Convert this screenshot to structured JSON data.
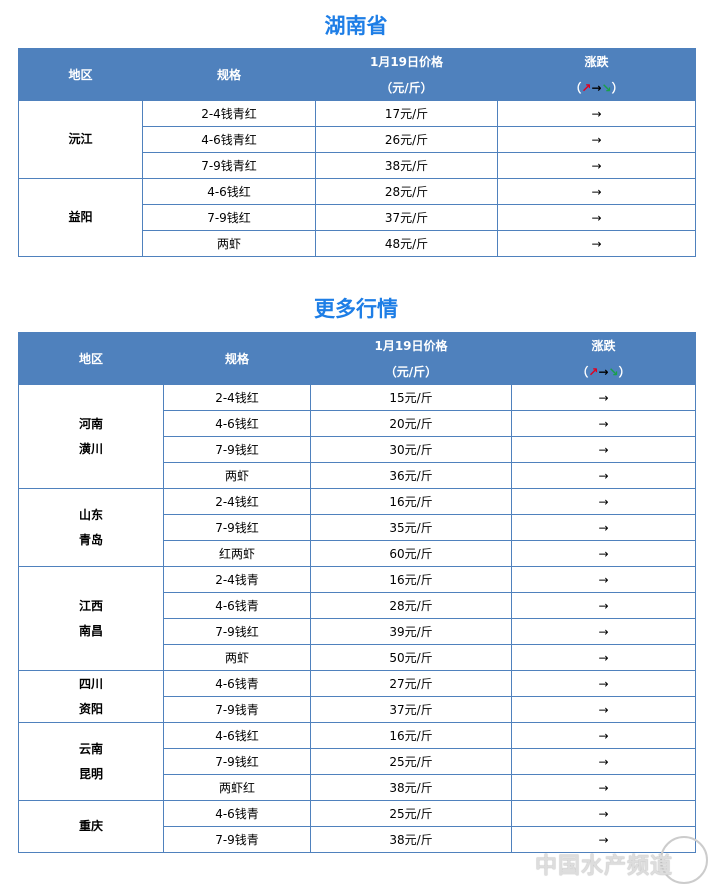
{
  "section1": {
    "title": "湖南省",
    "header": {
      "region": "地区",
      "spec": "规格",
      "price": "1月19日价格",
      "unit": "（元/斤）",
      "change": "涨跌",
      "legend_open": "（",
      "legend_up": "↗",
      "legend_flat": "→",
      "legend_down": "↘",
      "legend_close": "）"
    },
    "groups": [
      {
        "region": [
          "沅江"
        ],
        "rows": [
          {
            "spec": "2-4钱青红",
            "price": "17元/斤",
            "change": "→"
          },
          {
            "spec": "4-6钱青红",
            "price": "26元/斤",
            "change": "→"
          },
          {
            "spec": "7-9钱青红",
            "price": "38元/斤",
            "change": "→"
          }
        ]
      },
      {
        "region": [
          "益阳"
        ],
        "rows": [
          {
            "spec": "4-6钱红",
            "price": "28元/斤",
            "change": "→"
          },
          {
            "spec": "7-9钱红",
            "price": "37元/斤",
            "change": "→"
          },
          {
            "spec": "两虾",
            "price": "48元/斤",
            "change": "→"
          }
        ]
      }
    ]
  },
  "section2": {
    "title": "更多行情",
    "header": {
      "region": "地区",
      "spec": "规格",
      "price": "1月19日价格",
      "unit": "（元/斤）",
      "change": "涨跌",
      "legend_open": "（",
      "legend_up": "↗",
      "legend_flat": "→",
      "legend_down": "↘",
      "legend_close": "）"
    },
    "groups": [
      {
        "region": [
          "河南",
          "潢川"
        ],
        "rows": [
          {
            "spec": "2-4钱红",
            "price": "15元/斤",
            "change": "→"
          },
          {
            "spec": "4-6钱红",
            "price": "20元/斤",
            "change": "→"
          },
          {
            "spec": "7-9钱红",
            "price": "30元/斤",
            "change": "→"
          },
          {
            "spec": "两虾",
            "price": "36元/斤",
            "change": "→"
          }
        ]
      },
      {
        "region": [
          "山东",
          "青岛"
        ],
        "rows": [
          {
            "spec": "2-4钱红",
            "price": "16元/斤",
            "change": "→"
          },
          {
            "spec": "7-9钱红",
            "price": "35元/斤",
            "change": "→"
          },
          {
            "spec": "红两虾",
            "price": "60元/斤",
            "change": "→"
          }
        ]
      },
      {
        "region": [
          "江西",
          "南昌"
        ],
        "rows": [
          {
            "spec": "2-4钱青",
            "price": "16元/斤",
            "change": "→"
          },
          {
            "spec": "4-6钱青",
            "price": "28元/斤",
            "change": "→"
          },
          {
            "spec": "7-9钱红",
            "price": "39元/斤",
            "change": "→"
          },
          {
            "spec": "两虾",
            "price": "50元/斤",
            "change": "→"
          }
        ]
      },
      {
        "region": [
          "四川",
          "资阳"
        ],
        "rows": [
          {
            "spec": "4-6钱青",
            "price": "27元/斤",
            "change": "→"
          },
          {
            "spec": "7-9钱青",
            "price": "37元/斤",
            "change": "→"
          }
        ]
      },
      {
        "region": [
          "云南",
          "昆明"
        ],
        "rows": [
          {
            "spec": "4-6钱红",
            "price": "16元/斤",
            "change": "→"
          },
          {
            "spec": "7-9钱红",
            "price": "25元/斤",
            "change": "→"
          },
          {
            "spec": "两虾红",
            "price": "38元/斤",
            "change": "→"
          }
        ]
      },
      {
        "region": [
          "重庆"
        ],
        "rows": [
          {
            "spec": "4-6钱青",
            "price": "25元/斤",
            "change": "→"
          },
          {
            "spec": "7-9钱青",
            "price": "38元/斤",
            "change": "→"
          }
        ]
      }
    ]
  },
  "watermark": "中国水产频道"
}
